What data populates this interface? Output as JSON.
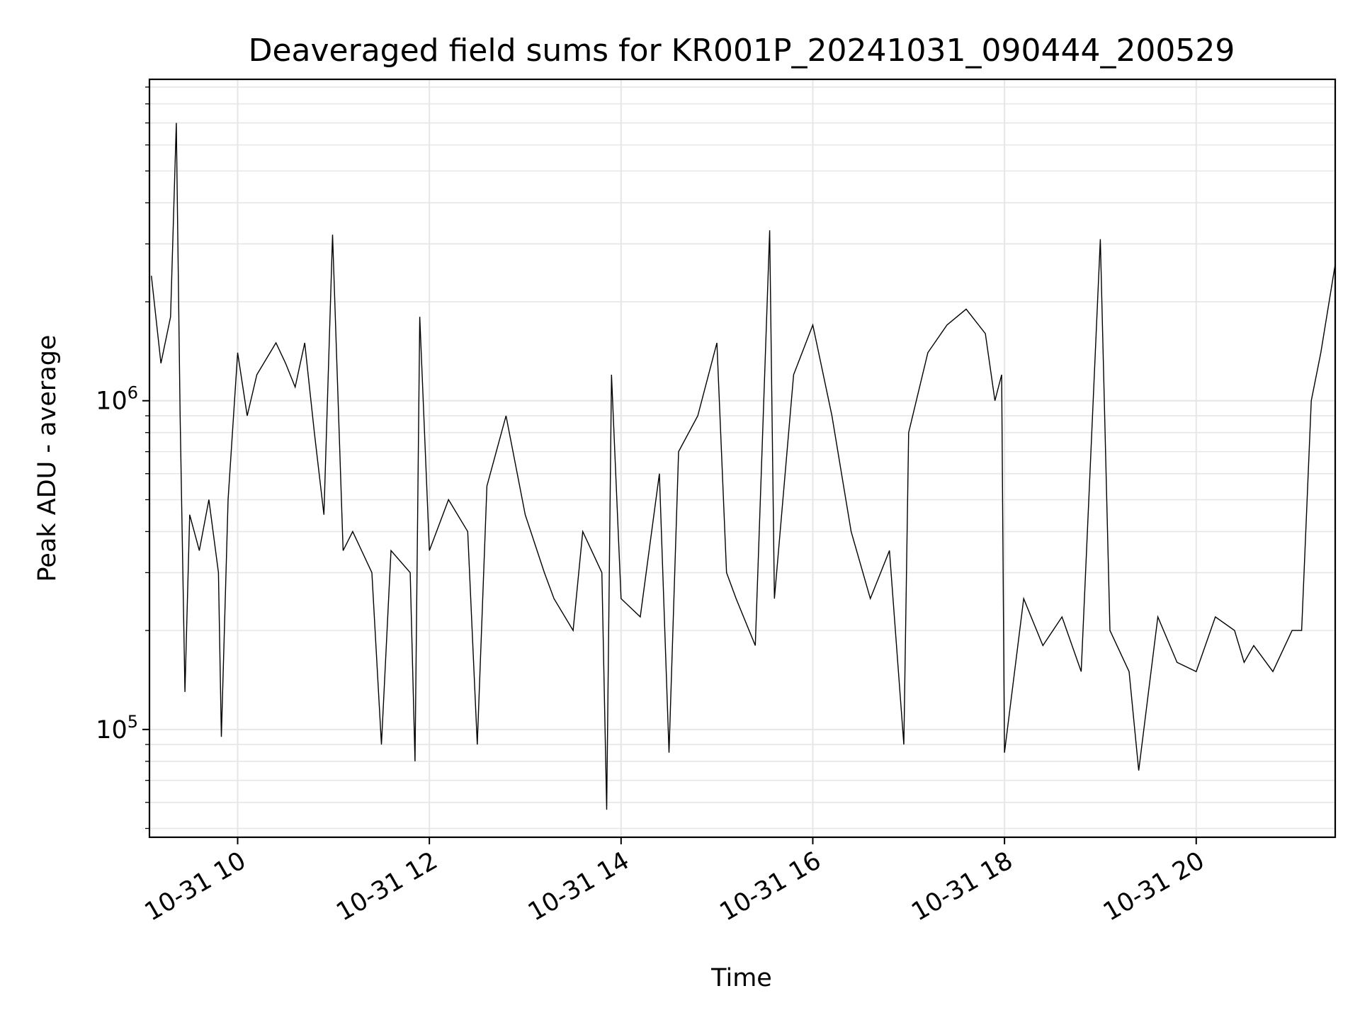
{
  "chart_data": {
    "type": "line",
    "title": "Deaveraged field sums for KR001P_20241031_090444_200529",
    "xlabel": "Time",
    "ylabel": "Peak ADU - average",
    "x_range_hours": [
      9.08,
      21.45
    ],
    "ylim": [
      47000,
      9500000
    ],
    "y_scale": "log",
    "grid": true,
    "line_color": "#000000",
    "x_ticks": [
      {
        "value": 10,
        "label": "10-31 10"
      },
      {
        "value": 12,
        "label": "10-31 12"
      },
      {
        "value": 14,
        "label": "10-31 14"
      },
      {
        "value": 16,
        "label": "10-31 16"
      },
      {
        "value": 18,
        "label": "10-31 18"
      },
      {
        "value": 20,
        "label": "10-31 20"
      }
    ],
    "y_ticks": [
      {
        "value": 100000,
        "base": "10",
        "exp": "5"
      },
      {
        "value": 1000000,
        "base": "10",
        "exp": "6"
      }
    ],
    "series": [
      {
        "x": [
          9.1,
          9.2,
          9.3,
          9.36,
          9.4,
          9.45,
          9.5,
          9.6,
          9.7,
          9.8,
          9.83,
          9.9,
          10.0,
          10.1,
          10.2,
          10.4,
          10.5,
          10.6,
          10.7,
          10.8,
          10.9,
          10.99,
          11.1,
          11.2,
          11.4,
          11.5,
          11.6,
          11.8,
          11.85,
          11.9,
          12.0,
          12.2,
          12.4,
          12.5,
          12.6,
          12.8,
          13.0,
          13.2,
          13.3,
          13.5,
          13.6,
          13.8,
          13.85,
          13.9,
          14.0,
          14.2,
          14.4,
          14.5,
          14.6,
          14.8,
          15.0,
          15.1,
          15.2,
          15.4,
          15.55,
          15.6,
          15.8,
          16.0,
          16.2,
          16.4,
          16.6,
          16.8,
          16.95,
          17.0,
          17.2,
          17.4,
          17.6,
          17.8,
          17.9,
          17.97,
          18.0,
          18.2,
          18.4,
          18.6,
          18.8,
          19.0,
          19.1,
          19.3,
          19.4,
          19.6,
          19.8,
          20.0,
          20.2,
          20.4,
          20.5,
          20.6,
          20.8,
          21.0,
          21.1,
          21.2,
          21.3,
          21.45
        ],
        "y": [
          2400000,
          1300000,
          1800000,
          7000000,
          900000,
          130000,
          450000,
          350000,
          500000,
          300000,
          95000,
          500000,
          1400000,
          900000,
          1200000,
          1500000,
          1300000,
          1100000,
          1500000,
          800000,
          450000,
          3200000,
          350000,
          400000,
          300000,
          90000,
          350000,
          300000,
          80000,
          1800000,
          350000,
          500000,
          400000,
          90000,
          550000,
          900000,
          450000,
          300000,
          250000,
          200000,
          400000,
          300000,
          57000,
          1200000,
          250000,
          220000,
          600000,
          85000,
          700000,
          900000,
          1500000,
          300000,
          250000,
          180000,
          3300000,
          250000,
          1200000,
          1700000,
          900000,
          400000,
          250000,
          350000,
          90000,
          800000,
          1400000,
          1700000,
          1900000,
          1600000,
          1000000,
          1200000,
          85000,
          250000,
          180000,
          220000,
          150000,
          3100000,
          200000,
          150000,
          75000,
          220000,
          160000,
          150000,
          220000,
          200000,
          160000,
          180000,
          150000,
          200000,
          200000,
          1000000,
          1400000,
          2600000
        ]
      }
    ]
  }
}
